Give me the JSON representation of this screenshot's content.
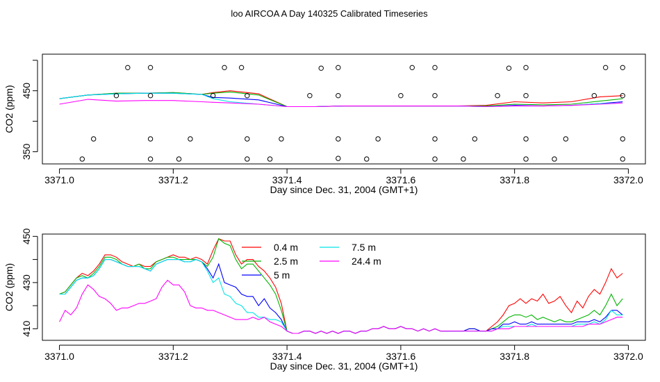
{
  "title": "loo AIRCOA A  Day 140325  Calibrated Timeseries",
  "colors": {
    "background": "#ffffff",
    "axis": "#000000",
    "s0_4m": "#ff0000",
    "s2_5m": "#00b400",
    "s5m": "#0000ff",
    "s7_5m": "#00e5e5",
    "s24_4m": "#ff00ff"
  },
  "chart_data": [
    {
      "type": "line",
      "xlabel": "Day since Dec. 31, 2004 (GMT+1)",
      "ylabel": "CO2 (ppm)",
      "xlim": [
        3370.97,
        3372.03
      ],
      "ylim": [
        330,
        510
      ],
      "xticks": [
        3371.0,
        3371.2,
        3371.4,
        3371.6,
        3371.8,
        3372.0
      ],
      "xtick_labels": [
        "3371.0",
        "3371.2",
        "3371.4",
        "3371.6",
        "3371.8",
        "3372.0"
      ],
      "yticks": [
        350,
        400,
        450,
        500
      ],
      "ytick_labels": [
        "350",
        "",
        "450",
        ""
      ],
      "x": [
        3371.0,
        3371.05,
        3371.1,
        3371.15,
        3371.2,
        3371.25,
        3371.27,
        3371.3,
        3371.35,
        3371.4,
        3371.45,
        3371.5,
        3371.55,
        3371.6,
        3371.65,
        3371.7,
        3371.75,
        3371.8,
        3371.85,
        3371.9,
        3371.95,
        3371.99
      ],
      "series": [
        {
          "name": "0.4 m",
          "color": "#ff0000",
          "values": [
            437,
            443,
            446,
            446,
            447,
            444,
            447,
            450,
            445,
            424,
            424,
            425,
            425,
            425,
            425,
            425,
            426,
            432,
            430,
            432,
            440,
            442
          ]
        },
        {
          "name": "2.5 m",
          "color": "#00b400",
          "values": [
            437,
            443,
            446,
            446,
            447,
            444,
            446,
            448,
            443,
            424,
            424,
            425,
            425,
            425,
            425,
            425,
            425,
            428,
            427,
            428,
            433,
            437
          ]
        },
        {
          "name": "5 m",
          "color": "#0000ff",
          "values": [
            437,
            443,
            445,
            446,
            446,
            444,
            439,
            438,
            435,
            424,
            424,
            425,
            425,
            425,
            425,
            425,
            424,
            426,
            425,
            426,
            429,
            432
          ]
        },
        {
          "name": "7.5 m",
          "color": "#00e5e5",
          "values": [
            437,
            443,
            445,
            446,
            446,
            444,
            437,
            432,
            428,
            424,
            424,
            425,
            425,
            425,
            425,
            425,
            424,
            425,
            425,
            426,
            429,
            430
          ]
        },
        {
          "name": "24.4 m",
          "color": "#ff00ff",
          "values": [
            428,
            436,
            433,
            434,
            434,
            432,
            431,
            430,
            428,
            424,
            424,
            425,
            425,
            425,
            425,
            425,
            424,
            425,
            425,
            426,
            428,
            430
          ]
        }
      ],
      "markers": [
        {
          "x": 3371.12,
          "y": 488
        },
        {
          "x": 3371.16,
          "y": 488
        },
        {
          "x": 3371.29,
          "y": 488
        },
        {
          "x": 3371.32,
          "y": 488
        },
        {
          "x": 3371.46,
          "y": 487
        },
        {
          "x": 3371.49,
          "y": 488
        },
        {
          "x": 3371.62,
          "y": 488
        },
        {
          "x": 3371.66,
          "y": 488
        },
        {
          "x": 3371.79,
          "y": 487
        },
        {
          "x": 3371.82,
          "y": 488
        },
        {
          "x": 3371.96,
          "y": 488
        },
        {
          "x": 3371.99,
          "y": 488
        },
        {
          "x": 3371.1,
          "y": 442
        },
        {
          "x": 3371.16,
          "y": 442
        },
        {
          "x": 3371.27,
          "y": 442
        },
        {
          "x": 3371.33,
          "y": 442
        },
        {
          "x": 3371.44,
          "y": 442
        },
        {
          "x": 3371.49,
          "y": 442
        },
        {
          "x": 3371.6,
          "y": 442
        },
        {
          "x": 3371.66,
          "y": 442
        },
        {
          "x": 3371.77,
          "y": 442
        },
        {
          "x": 3371.82,
          "y": 442
        },
        {
          "x": 3371.94,
          "y": 442
        },
        {
          "x": 3371.99,
          "y": 442
        },
        {
          "x": 3371.06,
          "y": 371
        },
        {
          "x": 3371.16,
          "y": 371
        },
        {
          "x": 3371.23,
          "y": 371
        },
        {
          "x": 3371.33,
          "y": 371
        },
        {
          "x": 3371.39,
          "y": 371
        },
        {
          "x": 3371.49,
          "y": 371
        },
        {
          "x": 3371.56,
          "y": 371
        },
        {
          "x": 3371.66,
          "y": 371
        },
        {
          "x": 3371.73,
          "y": 371
        },
        {
          "x": 3371.82,
          "y": 371
        },
        {
          "x": 3371.89,
          "y": 371
        },
        {
          "x": 3371.99,
          "y": 371
        },
        {
          "x": 3371.04,
          "y": 338
        },
        {
          "x": 3371.16,
          "y": 338
        },
        {
          "x": 3371.21,
          "y": 338
        },
        {
          "x": 3371.33,
          "y": 338
        },
        {
          "x": 3371.37,
          "y": 338
        },
        {
          "x": 3371.49,
          "y": 339
        },
        {
          "x": 3371.54,
          "y": 338
        },
        {
          "x": 3371.66,
          "y": 338
        },
        {
          "x": 3371.71,
          "y": 338
        },
        {
          "x": 3371.82,
          "y": 338
        },
        {
          "x": 3371.87,
          "y": 338
        },
        {
          "x": 3371.99,
          "y": 338
        }
      ]
    },
    {
      "type": "line",
      "xlabel": "Day since Dec. 31, 2004 (GMT+1)",
      "ylabel": "CO2 (ppm)",
      "xlim": [
        3370.97,
        3372.03
      ],
      "ylim": [
        405,
        451
      ],
      "xticks": [
        3371.0,
        3371.2,
        3371.4,
        3371.6,
        3371.8,
        3372.0
      ],
      "xtick_labels": [
        "3371.0",
        "3371.2",
        "3371.4",
        "3371.6",
        "3371.8",
        "3372.0"
      ],
      "yticks": [
        410,
        420,
        430,
        440,
        450
      ],
      "ytick_labels": [
        "410",
        "",
        "430",
        "",
        "450"
      ],
      "legend": {
        "placement": "top-center",
        "entries": [
          "0.4 m",
          "2.5 m",
          "5 m",
          "7.5 m",
          "24.4 m"
        ]
      },
      "x": [
        3371.0,
        3371.01,
        3371.02,
        3371.03,
        3371.04,
        3371.05,
        3371.06,
        3371.07,
        3371.08,
        3371.09,
        3371.1,
        3371.11,
        3371.12,
        3371.13,
        3371.14,
        3371.15,
        3371.16,
        3371.17,
        3371.18,
        3371.19,
        3371.2,
        3371.21,
        3371.22,
        3371.23,
        3371.24,
        3371.25,
        3371.26,
        3371.27,
        3371.28,
        3371.29,
        3371.3,
        3371.31,
        3371.32,
        3371.33,
        3371.34,
        3371.35,
        3371.36,
        3371.37,
        3371.38,
        3371.39,
        3371.4,
        3371.41,
        3371.42,
        3371.43,
        3371.44,
        3371.45,
        3371.46,
        3371.47,
        3371.48,
        3371.49,
        3371.5,
        3371.51,
        3371.52,
        3371.53,
        3371.54,
        3371.55,
        3371.56,
        3371.57,
        3371.58,
        3371.59,
        3371.6,
        3371.61,
        3371.62,
        3371.63,
        3371.64,
        3371.65,
        3371.66,
        3371.67,
        3371.68,
        3371.69,
        3371.7,
        3371.71,
        3371.72,
        3371.73,
        3371.74,
        3371.75,
        3371.76,
        3371.77,
        3371.78,
        3371.79,
        3371.8,
        3371.81,
        3371.82,
        3371.83,
        3371.84,
        3371.85,
        3371.86,
        3371.87,
        3371.88,
        3371.89,
        3371.9,
        3371.91,
        3371.92,
        3371.93,
        3371.94,
        3371.95,
        3371.96,
        3371.97,
        3371.98,
        3371.99
      ],
      "series": [
        {
          "name": "0.4 m",
          "color": "#ff0000",
          "values": [
            425,
            426,
            429,
            432,
            434,
            433,
            435,
            438,
            442,
            442,
            441,
            439,
            438,
            437,
            438,
            437,
            437,
            439,
            440,
            441,
            442,
            441,
            441,
            440,
            441,
            440,
            438,
            444,
            449,
            448,
            448,
            442,
            438,
            440,
            440,
            437,
            435,
            432,
            428,
            421,
            409,
            408,
            408,
            409,
            409,
            408,
            409,
            408,
            409,
            408,
            409,
            409,
            408,
            409,
            409,
            410,
            410,
            411,
            410,
            410,
            411,
            410,
            410,
            409,
            410,
            409,
            410,
            409,
            409,
            409,
            409,
            409,
            410,
            410,
            409,
            409,
            411,
            413,
            416,
            420,
            421,
            423,
            421,
            423,
            422,
            425,
            421,
            422,
            424,
            420,
            417,
            422,
            419,
            424,
            427,
            425,
            430,
            436,
            432,
            434
          ]
        },
        {
          "name": "2.5 m",
          "color": "#00b400",
          "values": [
            425,
            426,
            429,
            432,
            433,
            432,
            434,
            437,
            441,
            441,
            440,
            438,
            437,
            437,
            438,
            436,
            436,
            439,
            440,
            441,
            441,
            440,
            440,
            440,
            440,
            439,
            437,
            441,
            449,
            447,
            446,
            440,
            436,
            438,
            438,
            435,
            432,
            429,
            425,
            418,
            409,
            408,
            408,
            409,
            409,
            408,
            409,
            408,
            409,
            408,
            409,
            409,
            408,
            409,
            409,
            410,
            410,
            411,
            410,
            410,
            411,
            410,
            410,
            409,
            410,
            409,
            410,
            409,
            409,
            409,
            409,
            409,
            410,
            410,
            409,
            409,
            410,
            411,
            413,
            415,
            416,
            416,
            415,
            416,
            414,
            415,
            414,
            413,
            414,
            413,
            413,
            414,
            415,
            416,
            418,
            416,
            420,
            425,
            420,
            423
          ]
        },
        {
          "name": "5 m",
          "color": "#0000ff",
          "values": [
            425,
            425,
            428,
            431,
            432,
            432,
            433,
            436,
            440,
            440,
            439,
            438,
            437,
            437,
            437,
            436,
            435,
            438,
            439,
            440,
            440,
            440,
            439,
            439,
            440,
            439,
            436,
            432,
            438,
            430,
            429,
            428,
            425,
            424,
            424,
            420,
            423,
            419,
            417,
            414,
            409,
            408,
            408,
            409,
            409,
            408,
            409,
            408,
            409,
            408,
            409,
            409,
            408,
            409,
            409,
            410,
            410,
            411,
            410,
            410,
            411,
            410,
            410,
            409,
            410,
            409,
            410,
            409,
            409,
            409,
            409,
            409,
            410,
            410,
            409,
            409,
            410,
            410,
            412,
            412,
            413,
            412,
            412,
            413,
            412,
            412,
            412,
            412,
            412,
            412,
            412,
            413,
            413,
            413,
            414,
            413,
            415,
            418,
            418,
            416
          ]
        },
        {
          "name": "7.5 m",
          "color": "#00e5e5",
          "values": [
            425,
            425,
            428,
            431,
            432,
            432,
            433,
            436,
            440,
            440,
            439,
            438,
            437,
            437,
            437,
            436,
            435,
            438,
            439,
            440,
            440,
            440,
            439,
            439,
            440,
            439,
            435,
            430,
            432,
            425,
            424,
            421,
            420,
            417,
            417,
            415,
            415,
            414,
            414,
            413,
            409,
            408,
            408,
            409,
            409,
            408,
            409,
            408,
            409,
            408,
            409,
            409,
            408,
            409,
            409,
            410,
            410,
            411,
            410,
            410,
            411,
            410,
            410,
            409,
            410,
            409,
            410,
            409,
            409,
            409,
            409,
            409,
            409,
            409,
            409,
            409,
            409,
            410,
            411,
            411,
            411,
            411,
            411,
            412,
            411,
            411,
            411,
            411,
            411,
            411,
            411,
            412,
            412,
            412,
            413,
            412,
            414,
            418,
            416,
            416
          ]
        },
        {
          "name": "24.4 m",
          "color": "#ff00ff",
          "values": [
            413,
            418,
            416,
            419,
            425,
            429,
            427,
            424,
            423,
            421,
            418,
            419,
            419,
            420,
            421,
            421,
            422,
            423,
            428,
            431,
            429,
            429,
            426,
            420,
            419,
            419,
            418,
            418,
            417,
            416,
            415,
            414,
            414,
            414,
            415,
            414,
            415,
            413,
            412,
            411,
            409,
            408,
            408,
            409,
            409,
            408,
            409,
            408,
            409,
            408,
            409,
            409,
            408,
            409,
            409,
            410,
            410,
            411,
            410,
            410,
            411,
            410,
            410,
            409,
            410,
            409,
            410,
            409,
            409,
            409,
            409,
            409,
            409,
            409,
            409,
            409,
            409,
            410,
            410,
            410,
            411,
            411,
            411,
            411,
            411,
            411,
            411,
            411,
            411,
            411,
            411,
            411,
            411,
            412,
            412,
            412,
            413,
            414,
            415,
            415
          ]
        }
      ]
    }
  ]
}
